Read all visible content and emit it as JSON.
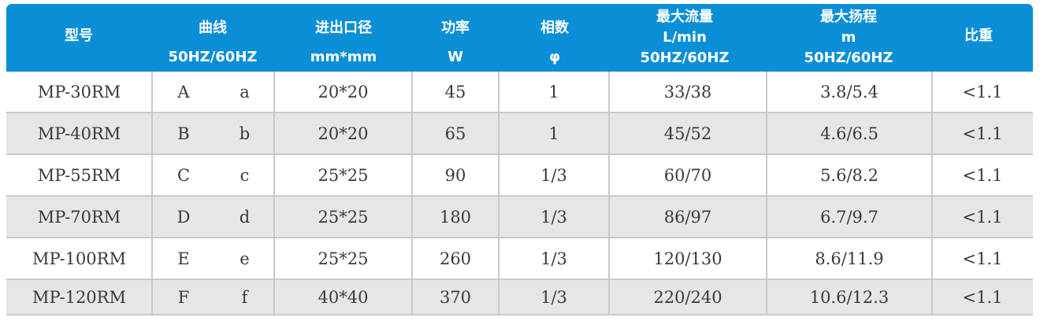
{
  "table": {
    "headers": {
      "model": [
        "型号"
      ],
      "curve": [
        "曲线",
        "50HZ/60HZ"
      ],
      "port": [
        "进出口径",
        "mm*mm"
      ],
      "power": [
        "功率",
        "W"
      ],
      "phase": [
        "相数",
        "φ"
      ],
      "flow": [
        "最大流量",
        "L/min",
        "50HZ/60HZ"
      ],
      "head": [
        "最大扬程",
        "m",
        "50HZ/60HZ"
      ],
      "gravity": [
        "比重"
      ]
    },
    "rows": [
      {
        "model": "MP-30RM",
        "curve_50": "A",
        "curve_60": "a",
        "port": "20*20",
        "power": "45",
        "phase": "1",
        "flow": "33/38",
        "head": "3.8/5.4",
        "gravity": "<1.1"
      },
      {
        "model": "MP-40RM",
        "curve_50": "B",
        "curve_60": "b",
        "port": "20*20",
        "power": "65",
        "phase": "1",
        "flow": "45/52",
        "head": "4.6/6.5",
        "gravity": "<1.1"
      },
      {
        "model": "MP-55RM",
        "curve_50": "C",
        "curve_60": "c",
        "port": "25*25",
        "power": "90",
        "phase": "1/3",
        "flow": "60/70",
        "head": "5.6/8.2",
        "gravity": "<1.1"
      },
      {
        "model": "MP-70RM",
        "curve_50": "D",
        "curve_60": "d",
        "port": "25*25",
        "power": "180",
        "phase": "1/3",
        "flow": "86/97",
        "head": "6.7/9.7",
        "gravity": "<1.1"
      },
      {
        "model": "MP-100RM",
        "curve_50": "E",
        "curve_60": "e",
        "port": "25*25",
        "power": "260",
        "phase": "1/3",
        "flow": "120/130",
        "head": "8.6/11.9",
        "gravity": "<1.1"
      },
      {
        "model": "MP-120RM",
        "curve_50": "F",
        "curve_60": "f",
        "port": "40*40",
        "power": "370",
        "phase": "1/3",
        "flow": "220/240",
        "head": "10.6/12.3",
        "gravity": "<1.1"
      }
    ]
  },
  "colors": {
    "header_bg": "#0a8fd6",
    "header_text": "#ffffff",
    "alt_row": "#e6e6e6",
    "grid": "#c9c9c9",
    "body_text": "#3a3a3a"
  }
}
